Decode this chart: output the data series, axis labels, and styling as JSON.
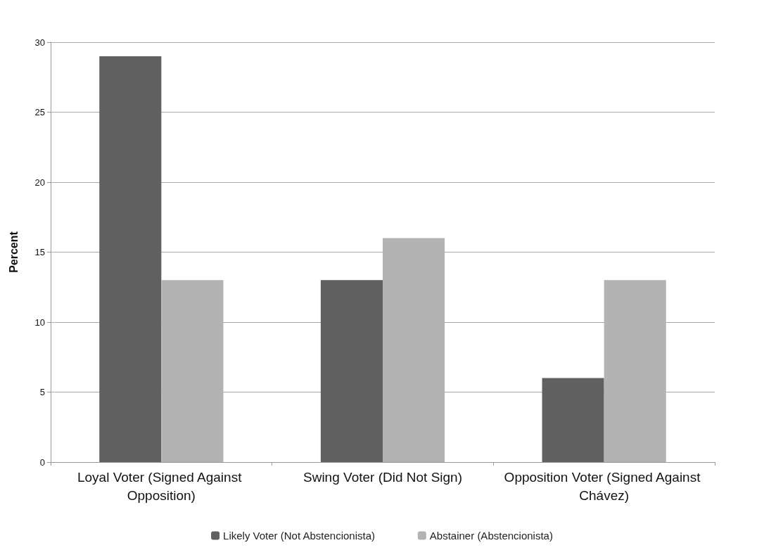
{
  "chart_data": {
    "type": "bar",
    "ylabel": "Percent",
    "categories": [
      "Loyal Voter (Signed Against Opposition)",
      "Swing Voter (Did Not Sign)",
      "Opposition Voter (Signed Against Chávez)"
    ],
    "series": [
      {
        "name": "Likely Voter (Not Abstencionista)",
        "color": "#606060",
        "values": [
          29,
          13,
          6
        ]
      },
      {
        "name": "Abstainer (Abstencionista)",
        "color": "#b3b3b3",
        "values": [
          13,
          16,
          13
        ]
      }
    ],
    "ylim": [
      0,
      30
    ],
    "yticks": [
      0,
      5,
      10,
      15,
      20,
      25,
      30
    ],
    "grid": "y",
    "legend": "bottom"
  }
}
